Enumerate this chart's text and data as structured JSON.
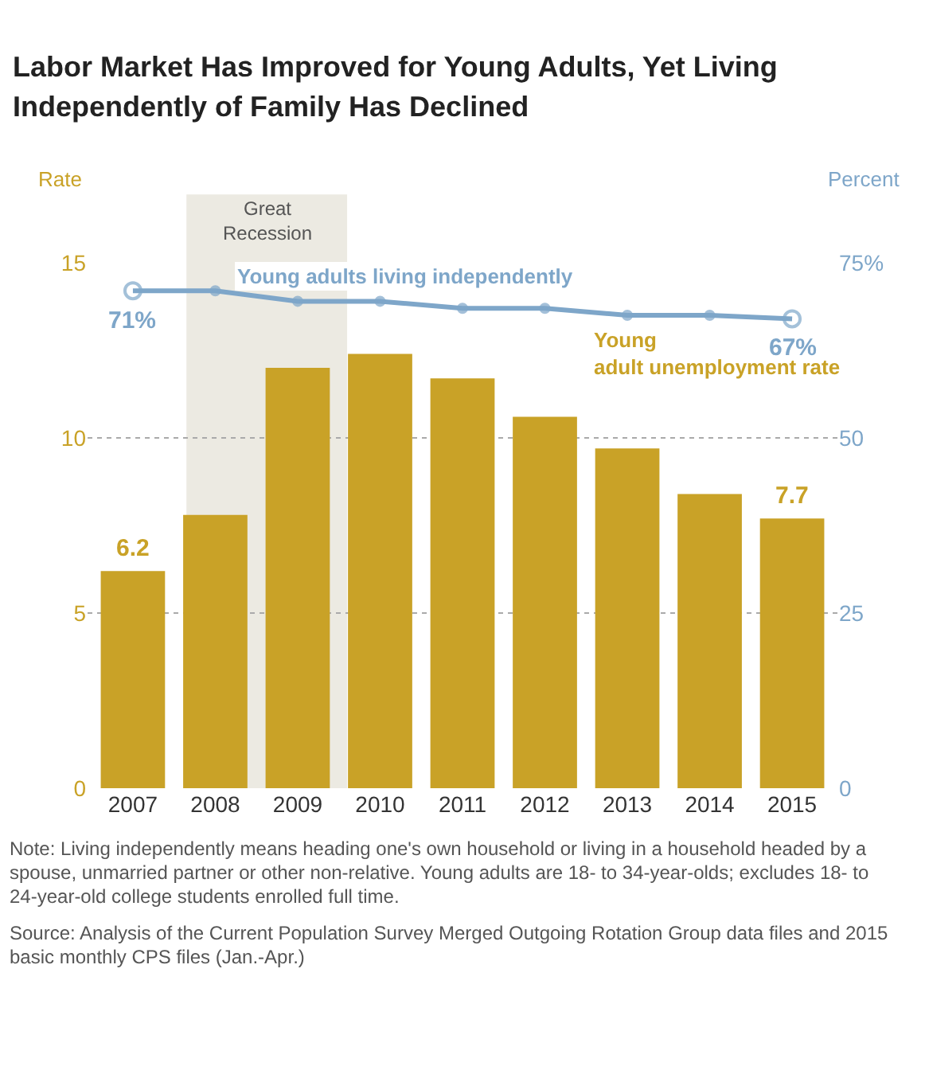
{
  "chart_data": {
    "type": "bar",
    "title": "Labor Market Has Improved for Young Adults, Yet Living Independently of Family Has Declined",
    "x": [
      2007,
      2008,
      2009,
      2010,
      2011,
      2012,
      2013,
      2014,
      2015
    ],
    "xlim": [
      2006.45,
      2015.55
    ],
    "xticks": [
      2007,
      2008,
      2009,
      2010,
      2011,
      2012,
      2013,
      2014,
      2015
    ],
    "series": [
      {
        "name": "Young adult unemployment rate",
        "color": "#c9a227",
        "values": [
          6.2,
          7.8,
          12.0,
          12.4,
          11.7,
          10.6,
          9.7,
          8.4,
          7.7
        ],
        "value_labels": [
          "6.2",
          null,
          null,
          null,
          null,
          null,
          null,
          null,
          "7.7"
        ]
      },
      {
        "name": "Young adults living independently",
        "type": "line",
        "axis": "y2",
        "color": "#7ea6c9",
        "values": [
          71,
          71,
          69.5,
          69.5,
          68.5,
          68.5,
          67.5,
          67.5,
          67
        ],
        "value_labels": [
          "71%",
          null,
          null,
          null,
          null,
          null,
          null,
          null,
          "67%"
        ]
      }
    ],
    "ylabel": "Rate",
    "y2label": "Percent",
    "ylim": [
      0,
      15
    ],
    "yticks": [
      0,
      5,
      10,
      15
    ],
    "y2lim": [
      0,
      75
    ],
    "y2ticks": [
      0,
      25,
      50,
      {
        "value": 75,
        "label": "75%"
      }
    ],
    "bands": [
      {
        "axis": "x",
        "from": 2007.65,
        "to": 2009.6,
        "label": "Great Recession",
        "color": "#eceae2"
      }
    ],
    "grid": "y",
    "marker": "circle",
    "legend": false,
    "annotations": [
      "Note: Living independently means heading one's own household or living in a household headed by a spouse, unmarried partner or other non-relative. Young adults are 18- to 34-year-olds; excludes 18- to 24-year-old college students enrolled full time.",
      "Source: Analysis of the Current Population Survey Merged Outgoing Rotation Group data files and 2015 basic monthly CPS files (Jan.-Apr.)"
    ]
  }
}
